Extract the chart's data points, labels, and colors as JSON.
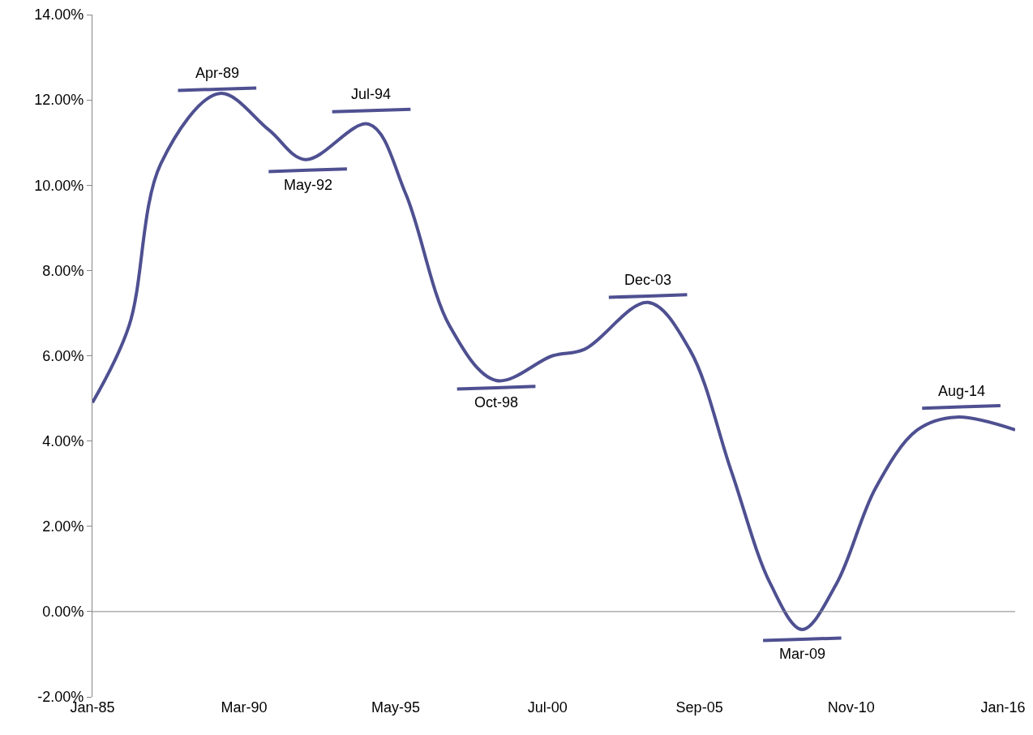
{
  "chart_data": {
    "type": "line",
    "x": [
      "1985-01",
      "1986-04",
      "1987-05",
      "1989-05",
      "1991-01",
      "1992-04",
      "1994-06",
      "1995-09",
      "1997-03",
      "1998-10",
      "2000-09",
      "2001-10",
      "2003-12",
      "2005-05",
      "2006-10",
      "2008-02",
      "2009-03",
      "2010-05",
      "2011-09",
      "2013-02",
      "2014-06",
      "2016-06"
    ],
    "series": [
      {
        "color": "#4e5091",
        "values": [
          4.9,
          6.7,
          10.5,
          12.15,
          11.3,
          10.6,
          11.43,
          9.8,
          6.7,
          5.42,
          6.0,
          6.15,
          7.25,
          6.15,
          3.3,
          0.65,
          -0.42,
          0.65,
          2.9,
          4.26,
          4.56,
          4.26
        ]
      },
      {
        "color": "#4e5091",
        "x": [
          "1987-12",
          "1989-04",
          "1990-08"
        ],
        "values": [
          12.22,
          12.25,
          12.28
        ]
      },
      {
        "color": "#4e5091",
        "x": [
          "1991-01",
          "1992-05",
          "1993-09"
        ],
        "values": [
          10.32,
          10.35,
          10.38
        ]
      },
      {
        "color": "#4e5091",
        "x": [
          "1993-03",
          "1994-07",
          "1995-11"
        ],
        "values": [
          11.72,
          11.75,
          11.78
        ]
      },
      {
        "color": "#4e5091",
        "x": [
          "1997-06",
          "1998-10",
          "2000-02"
        ],
        "values": [
          5.22,
          5.25,
          5.28
        ]
      },
      {
        "color": "#4e5091",
        "x": [
          "2002-08",
          "2003-12",
          "2005-04"
        ],
        "values": [
          7.37,
          7.4,
          7.43
        ]
      },
      {
        "color": "#4e5091",
        "x": [
          "2007-11",
          "2009-03",
          "2010-07"
        ],
        "values": [
          -0.68,
          -0.65,
          -0.62
        ]
      },
      {
        "color": "#4e5091",
        "x": [
          "2013-04",
          "2014-08",
          "2015-12"
        ],
        "values": [
          4.77,
          4.8,
          4.83
        ]
      }
    ],
    "annotations": [
      {
        "text": "Apr-89",
        "x": "1989-04",
        "y": 12.25
      },
      {
        "text": "May-92",
        "x": "1992-05",
        "y": 10.35
      },
      {
        "text": "Jul-94",
        "x": "1994-07",
        "y": 11.75
      },
      {
        "text": "Oct-98",
        "x": "1998-10",
        "y": 5.25
      },
      {
        "text": "Dec-03",
        "x": "2003-12",
        "y": 7.4
      },
      {
        "text": "Mar-09",
        "x": "2009-03",
        "y": -0.65
      },
      {
        "text": "Aug-14",
        "x": "2014-08",
        "y": 4.8
      }
    ],
    "xlim": [
      "1985-01-01",
      "2016-06-01"
    ],
    "xticks": [
      {
        "value": "1985-01-01",
        "label": "Jan-85"
      },
      {
        "value": "1990-03-01",
        "label": "Mar-90"
      },
      {
        "value": "1995-05-01",
        "label": "May-95"
      },
      {
        "value": "2000-07-01",
        "label": "Jul-00"
      },
      {
        "value": "2005-09-01",
        "label": "Sep-05"
      },
      {
        "value": "2010-11-01",
        "label": "Nov-10"
      },
      {
        "value": "2016-01-01",
        "label": "Jan-16"
      }
    ],
    "ylim": [
      -2,
      14
    ],
    "yticks": [
      {
        "value": -2,
        "label": "-2.00%"
      },
      {
        "value": 0,
        "label": "0.00%"
      },
      {
        "value": 2,
        "label": "2.00%"
      },
      {
        "value": 4,
        "label": "4.00%"
      },
      {
        "value": 6,
        "label": "6.00%"
      },
      {
        "value": 8,
        "label": "8.00%"
      },
      {
        "value": 10,
        "label": "10.00%"
      },
      {
        "value": 12,
        "label": "12.00%"
      },
      {
        "value": 14,
        "label": "14.00%"
      }
    ],
    "ref_lines": [
      {
        "axis": "y",
        "value": 0,
        "color": "#868686"
      }
    ],
    "grid": false,
    "marker": "none",
    "line_style": "solid"
  }
}
